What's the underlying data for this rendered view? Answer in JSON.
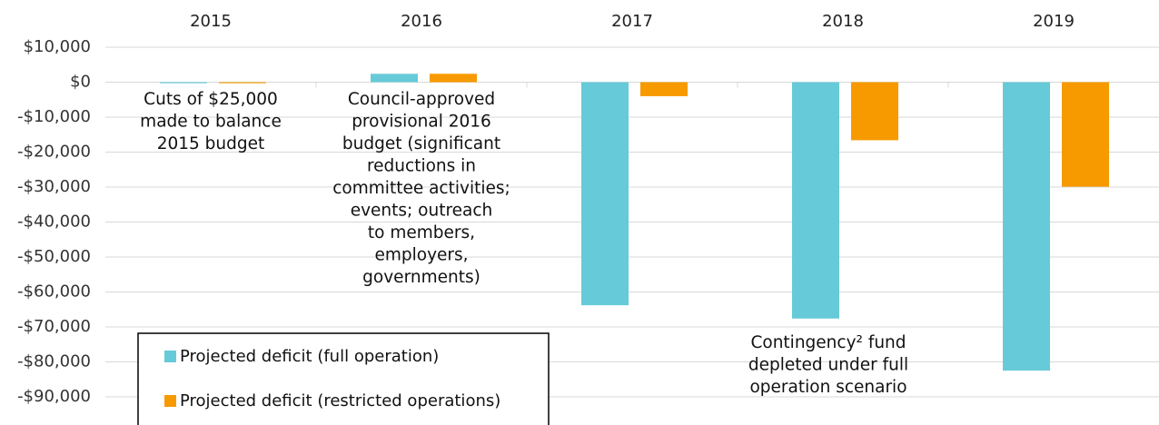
{
  "chart_data": {
    "type": "bar",
    "categories": [
      "2015",
      "2016",
      "2017",
      "2018",
      "2019"
    ],
    "series": [
      {
        "name": "Projected deficit (full operation)",
        "color": "#67cad8",
        "values": [
          -300,
          2400,
          -63800,
          -67600,
          -82500
        ]
      },
      {
        "name": "Projected deficit (restricted operations)",
        "color": "#f79a00",
        "values": [
          -300,
          2400,
          -4000,
          -16600,
          -29900
        ]
      }
    ],
    "ylim": [
      -100000,
      10000
    ],
    "yticks": [
      {
        "value": 10000,
        "label": "$10,000"
      },
      {
        "value": 0,
        "label": "$0"
      },
      {
        "value": -10000,
        "label": "-$10,000"
      },
      {
        "value": -20000,
        "label": "-$20,000"
      },
      {
        "value": -30000,
        "label": "-$30,000"
      },
      {
        "value": -40000,
        "label": "-$40,000"
      },
      {
        "value": -50000,
        "label": "-$50,000"
      },
      {
        "value": -60000,
        "label": "-$60,000"
      },
      {
        "value": -70000,
        "label": "-$70,000"
      },
      {
        "value": -80000,
        "label": "-$80,000"
      },
      {
        "value": -90000,
        "label": "-$90,000"
      }
    ],
    "grid": true,
    "legend": "lower left",
    "annotations": [
      {
        "lines": [
          "Cuts of $25,000",
          "made to balance",
          "2015 budget"
        ]
      },
      {
        "lines": [
          "Council-approved",
          "provisional 2016",
          "budget (significant",
          "reductions in",
          "committee activities;",
          "events; outreach",
          "to members,",
          "employers,",
          "governments)"
        ]
      },
      {
        "lines": [
          "Contingency² fund",
          "depleted under full",
          "operation scenario"
        ]
      }
    ]
  }
}
